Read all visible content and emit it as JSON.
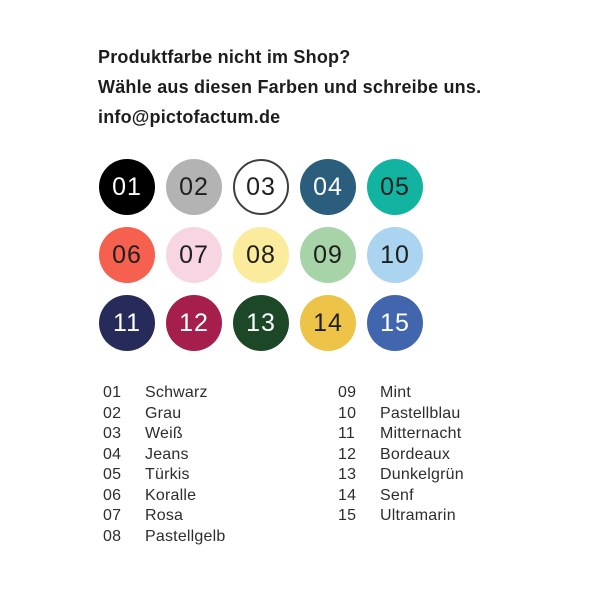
{
  "header": {
    "line1": "Produktfarbe nicht im Shop?",
    "line2": "Wähle aus diesen Farben und schreibe uns.",
    "line3": "info@pictofactum.de"
  },
  "palette": {
    "swatches": [
      {
        "number": "01",
        "name": "Schwarz",
        "color": "#000000",
        "text_color": "#ffffff"
      },
      {
        "number": "02",
        "name": "Grau",
        "color": "#b3b3b3",
        "text_color": "#1f1f1f"
      },
      {
        "number": "03",
        "name": "Weiß",
        "color": "#ffffff",
        "text_color": "#1f1f1f",
        "border_color": "#3f3f3f"
      },
      {
        "number": "04",
        "name": "Jeans",
        "color": "#2b5d7d",
        "text_color": "#ffffff"
      },
      {
        "number": "05",
        "name": "Türkis",
        "color": "#13b3a1",
        "text_color": "#1f1f1f"
      },
      {
        "number": "06",
        "name": "Koralle",
        "color": "#f6604f",
        "text_color": "#1f1f1f"
      },
      {
        "number": "07",
        "name": "Rosa",
        "color": "#f8d5e2",
        "text_color": "#1f1f1f"
      },
      {
        "number": "08",
        "name": "Pastellgelb",
        "color": "#faeb9d",
        "text_color": "#1f1f1f"
      },
      {
        "number": "09",
        "name": "Mint",
        "color": "#a7d3a9",
        "text_color": "#1f1f1f"
      },
      {
        "number": "10",
        "name": "Pastellblau",
        "color": "#aad4f0",
        "text_color": "#1f1f1f"
      },
      {
        "number": "11",
        "name": "Mitternacht",
        "color": "#272b5a",
        "text_color": "#ffffff"
      },
      {
        "number": "12",
        "name": "Bordeaux",
        "color": "#a61f4c",
        "text_color": "#ffffff"
      },
      {
        "number": "13",
        "name": "Dunkelgrün",
        "color": "#1c4827",
        "text_color": "#ffffff"
      },
      {
        "number": "14",
        "name": "Senf",
        "color": "#edc448",
        "text_color": "#1f1f1f"
      },
      {
        "number": "15",
        "name": "Ultramarin",
        "color": "#4166ae",
        "text_color": "#ffffff"
      }
    ],
    "legend_split_index": 8
  }
}
